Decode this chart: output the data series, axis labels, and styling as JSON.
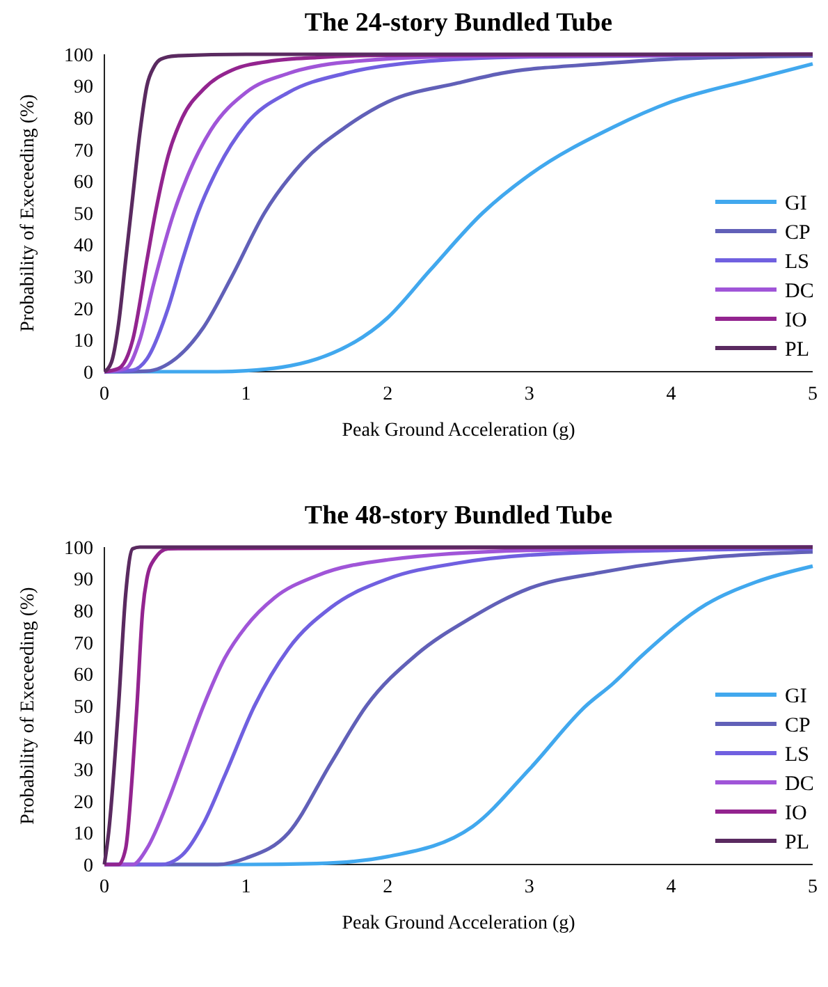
{
  "chart_data": [
    {
      "type": "line",
      "title": "The 24-story Bundled Tube",
      "xlabel": "Peak Ground Acceleration (g)",
      "ylabel": "Probability of Execeeding (%)",
      "xlim": [
        0,
        5
      ],
      "xticks": [
        0,
        1,
        2,
        3,
        4,
        5
      ],
      "ylim": [
        0,
        100
      ],
      "yticks": [
        0,
        10,
        20,
        30,
        40,
        50,
        60,
        70,
        80,
        90,
        100
      ],
      "grid": false,
      "legend": "bottom right",
      "marker": "none",
      "line_style": "solid",
      "series": [
        {
          "name": "GI",
          "color": "#41a8ee",
          "x": [
            0,
            0.8,
            1,
            1.5,
            2,
            2.3,
            2.67,
            3,
            3.59,
            4,
            4.57,
            5
          ],
          "values": [
            0,
            0,
            0.3,
            4,
            17,
            32,
            50,
            62,
            77,
            85,
            92,
            97
          ]
        },
        {
          "name": "CP",
          "color": "#6160b8",
          "x": [
            0,
            0.3,
            0.5,
            0.7,
            0.9,
            1.13,
            1.4,
            1.7,
            2,
            2.5,
            2.8,
            3.5,
            4,
            5
          ],
          "values": [
            0,
            0.2,
            4,
            14,
            30,
            50,
            66,
            77,
            85,
            91,
            94,
            97,
            98.5,
            99.5
          ]
        },
        {
          "name": "LS",
          "color": "#7060e0",
          "x": [
            0,
            0.2,
            0.3,
            0.45,
            0.55,
            0.66,
            0.8,
            1,
            1.3,
            1.7,
            2.2,
            3,
            5
          ],
          "values": [
            0,
            0.5,
            4,
            20,
            35,
            50,
            64,
            78,
            88,
            94,
            97.5,
            99.2,
            99.9
          ]
        },
        {
          "name": "DC",
          "color": "#a055d8",
          "x": [
            0,
            0.15,
            0.25,
            0.35,
            0.49,
            0.6,
            0.75,
            1,
            1.3,
            1.7,
            2.5,
            5
          ],
          "values": [
            0,
            1,
            10,
            28,
            50,
            63,
            76,
            88,
            94,
            97.5,
            99.3,
            100
          ]
        },
        {
          "name": "IO",
          "color": "#93248f",
          "x": [
            0,
            0.1,
            0.2,
            0.3,
            0.36,
            0.45,
            0.55,
            0.7,
            0.9,
            1.2,
            1.5,
            2,
            5
          ],
          "values": [
            0,
            1,
            10,
            35,
            50,
            68,
            80,
            89,
            95,
            98,
            99,
            99.7,
            100
          ]
        },
        {
          "name": "PL",
          "color": "#5a2a60",
          "x": [
            0,
            0.05,
            0.1,
            0.15,
            0.2,
            0.25,
            0.3,
            0.35,
            0.4,
            0.5,
            1,
            5
          ],
          "values": [
            0,
            3,
            15,
            35,
            55,
            75,
            90,
            96,
            98.5,
            99.5,
            100,
            100
          ]
        }
      ]
    },
    {
      "type": "line",
      "title": "The 48-story Bundled Tube",
      "xlabel": "Peak Ground Acceleration (g)",
      "ylabel": "Probability of Execeeding (%)",
      "xlim": [
        0,
        5
      ],
      "xticks": [
        0,
        1,
        2,
        3,
        4,
        5
      ],
      "ylim": [
        0,
        100
      ],
      "yticks": [
        0,
        10,
        20,
        30,
        40,
        50,
        60,
        70,
        80,
        90,
        100
      ],
      "grid": false,
      "legend": "bottom right",
      "marker": "none",
      "line_style": "solid",
      "series": [
        {
          "name": "GI",
          "color": "#41a8ee",
          "x": [
            0,
            1,
            1.5,
            2,
            2.6,
            3,
            3.4,
            3.59,
            3.8,
            4.25,
            4.6,
            5
          ],
          "values": [
            0,
            0,
            0.3,
            2.5,
            12,
            30,
            50,
            57,
            66,
            82,
            89,
            94
          ]
        },
        {
          "name": "CP",
          "color": "#6160b8",
          "x": [
            0,
            0.8,
            1,
            1.3,
            1.6,
            1.85,
            2.2,
            2.6,
            2.8,
            3,
            3.5,
            4,
            4.5,
            5
          ],
          "values": [
            0,
            0,
            2,
            10,
            32,
            50,
            66,
            78,
            83,
            87,
            92,
            95.5,
            97.5,
            98.5
          ]
        },
        {
          "name": "LS",
          "color": "#7060e0",
          "x": [
            0,
            0.4,
            0.55,
            0.7,
            0.85,
            1.06,
            1.3,
            1.6,
            2,
            2.5,
            3,
            4,
            5
          ],
          "values": [
            0,
            0,
            3,
            13,
            28,
            50,
            68,
            81,
            90,
            95,
            97.5,
            99,
            99.5
          ]
        },
        {
          "name": "DC",
          "color": "#a055d8",
          "x": [
            0,
            0.2,
            0.3,
            0.45,
            0.55,
            0.7,
            0.85,
            1,
            1.2,
            1.5,
            2,
            3,
            5
          ],
          "values": [
            0,
            0,
            5,
            20,
            32,
            50,
            65,
            75,
            84,
            91,
            96,
            99,
            100
          ]
        },
        {
          "name": "IO",
          "color": "#93248f",
          "x": [
            0,
            0.1,
            0.15,
            0.2,
            0.23,
            0.27,
            0.3,
            0.35,
            0.45,
            5
          ],
          "values": [
            0,
            0,
            5,
            30,
            50,
            80,
            90,
            96,
            99.5,
            100
          ]
        },
        {
          "name": "PL",
          "color": "#5a2a60",
          "x": [
            0,
            0.03,
            0.1,
            0.15,
            0.2,
            0.25,
            5
          ],
          "values": [
            0,
            10,
            50,
            85,
            99.5,
            100,
            100
          ]
        }
      ]
    }
  ]
}
